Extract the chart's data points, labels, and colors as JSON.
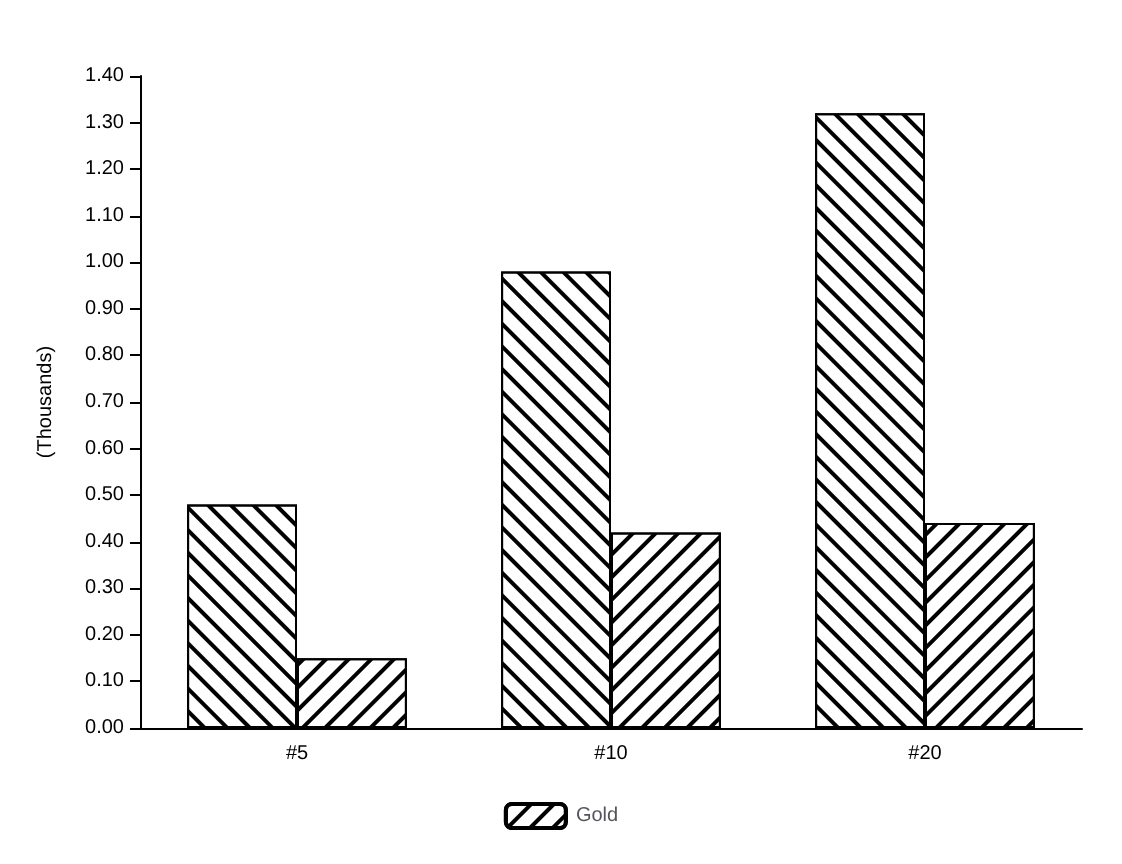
{
  "chart_data": {
    "type": "bar",
    "ylabel": "(Thousands)",
    "categories": [
      "#5",
      "#10",
      "#20"
    ],
    "series": [
      {
        "color": "#ffffff",
        "values": [
          0.48,
          0.98,
          1.32
        ]
      },
      {
        "name": "Gold",
        "color": "#ffffff",
        "values": [
          0.15,
          0.42,
          0.44
        ]
      }
    ],
    "ylim": [
      0,
      1.4
    ],
    "yticks": [
      {
        "value": 0,
        "label": "0.00"
      },
      {
        "value": 0.1,
        "label": "0.10"
      },
      {
        "value": 0.2,
        "label": "0.20"
      },
      {
        "value": 0.3,
        "label": "0.30"
      },
      {
        "value": 0.4,
        "label": "0.40"
      },
      {
        "value": 0.5,
        "label": "0.50"
      },
      {
        "value": 0.6,
        "label": "0.60"
      },
      {
        "value": 0.7,
        "label": "0.70"
      },
      {
        "value": 0.8,
        "label": "0.80"
      },
      {
        "value": 0.9,
        "label": "0.90"
      },
      {
        "value": 1.0,
        "label": "1.00"
      },
      {
        "value": 1.1,
        "label": "1.10"
      },
      {
        "value": 1.2,
        "label": "1.20"
      },
      {
        "value": 1.3,
        "label": "1.30"
      },
      {
        "value": 1.4,
        "label": "1.40"
      }
    ],
    "grid": false,
    "legend": "bottom"
  }
}
